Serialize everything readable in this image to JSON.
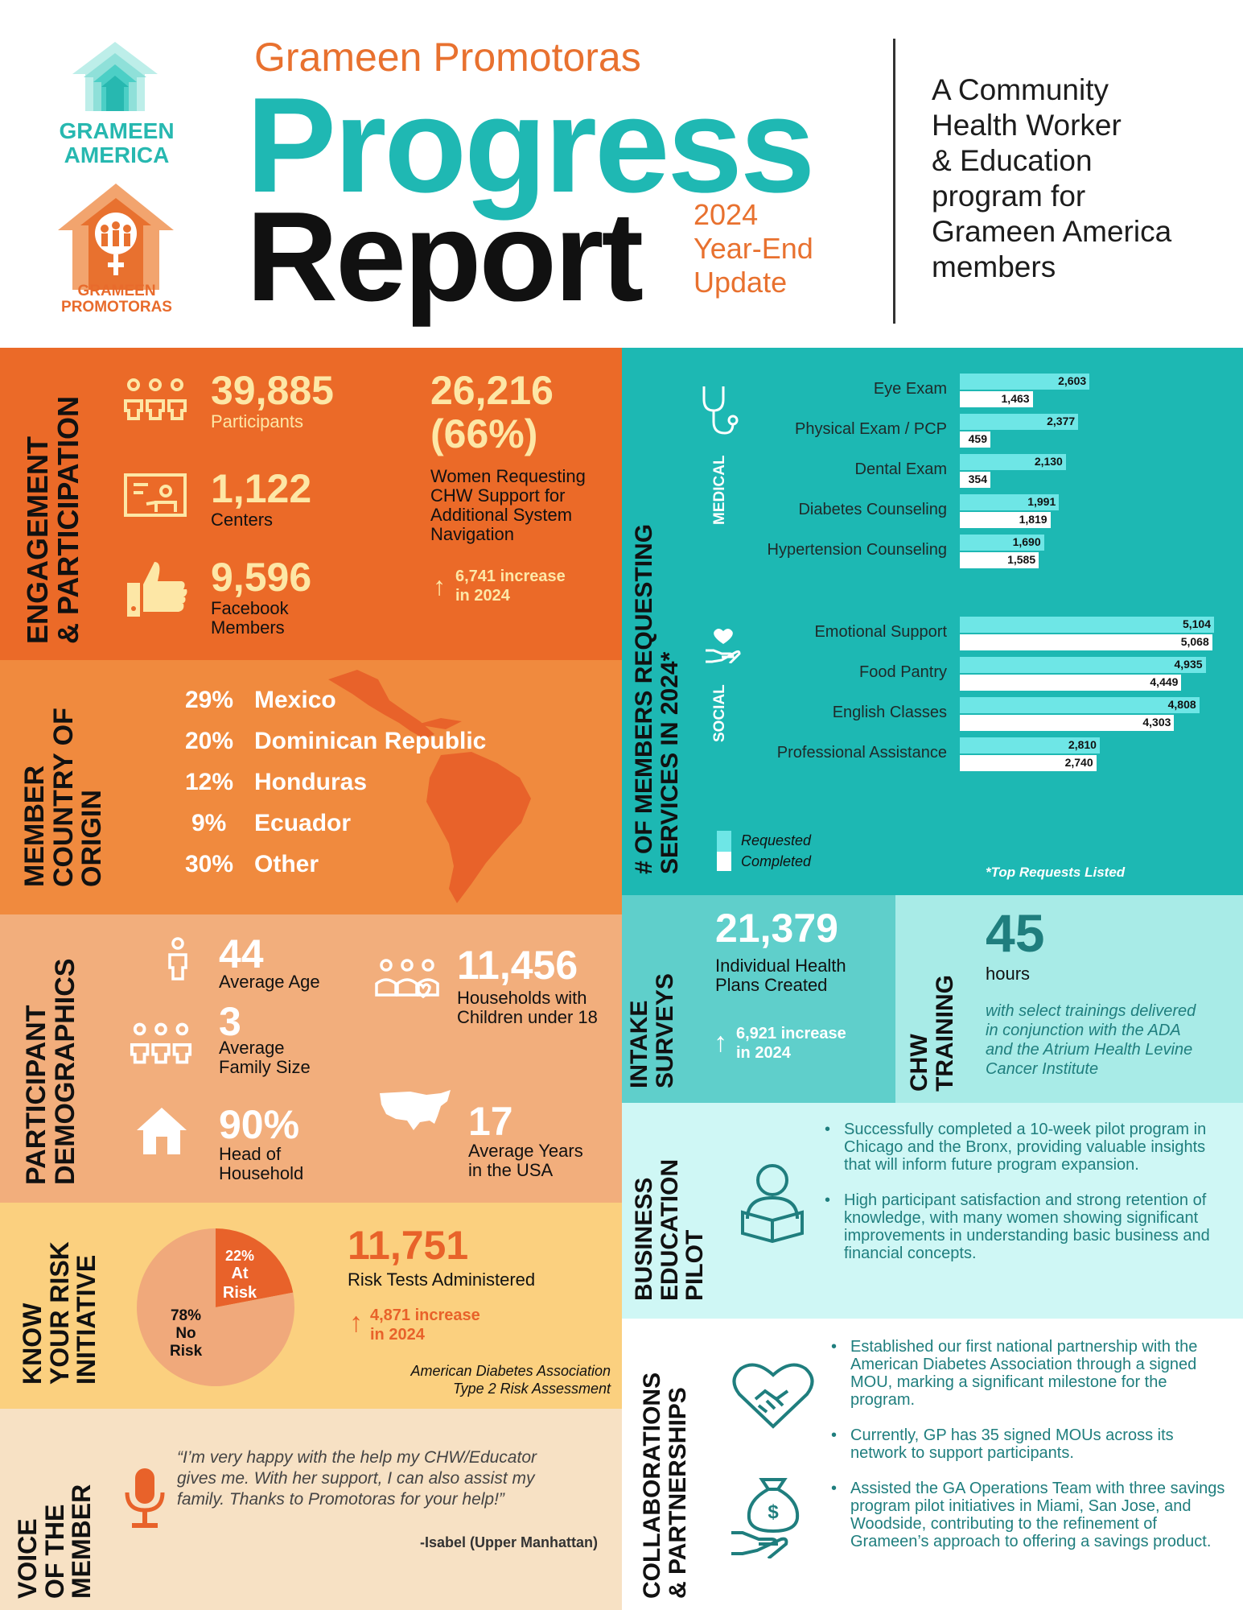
{
  "header": {
    "logo1_line1": "GRAMEEN",
    "logo1_line2": "AMERICA",
    "logo2_line1": "GRAMEEN",
    "logo2_line2": "PROMOTORAS",
    "org_title": "Grameen Promotoras",
    "title_line1": "Progress",
    "title_line2": "Report",
    "update_line1": "2024",
    "update_line2": "Year-End",
    "update_line3": "Update",
    "tagline": [
      "A Community",
      "Health Worker",
      "& Education",
      "program for",
      "Grameen America",
      "members"
    ]
  },
  "engagement": {
    "section_title": [
      "ENGAGEMENT",
      "& PARTICIPATION"
    ],
    "participants_value": "39,885",
    "participants_label": "Participants",
    "centers_value": "1,122",
    "centers_label": "Centers",
    "facebook_value": "9,596",
    "facebook_label": [
      "Facebook",
      "Members"
    ],
    "women_value": "26,216",
    "women_pct": "(66%)",
    "women_label": [
      "Women Requesting",
      "CHW Support for",
      "Additional System",
      "Navigation"
    ],
    "women_increase": [
      "6,741 increase",
      "in 2024"
    ]
  },
  "origin": {
    "section_title": [
      "MEMBER",
      "COUNTRY OF",
      "ORIGIN"
    ],
    "items": [
      {
        "pct": "29%",
        "country": "Mexico"
      },
      {
        "pct": "20%",
        "country": "Dominican Republic"
      },
      {
        "pct": "12%",
        "country": "Honduras"
      },
      {
        "pct": "9%",
        "country": "Ecuador"
      },
      {
        "pct": "30%",
        "country": "Other"
      }
    ]
  },
  "demographics": {
    "section_title": [
      "PARTICIPANT",
      "DEMOGRAPHICS"
    ],
    "age_value": "44",
    "age_label": "Average Age",
    "family_value": "3",
    "family_label": [
      "Average",
      "Family Size"
    ],
    "head_value": "90%",
    "head_label": [
      "Head of",
      "Household"
    ],
    "households_value": "11,456",
    "households_label": [
      "Households with",
      "Children under 18"
    ],
    "years_value": "17",
    "years_label": [
      "Average Years",
      "in the USA"
    ]
  },
  "risk": {
    "section_title": [
      "KNOW",
      "YOUR RISK",
      "INITIATIVE"
    ],
    "chart_data": {
      "type": "pie",
      "slices": [
        {
          "label": "At Risk",
          "value": 22,
          "display": "22%",
          "color": "#e8622a"
        },
        {
          "label": "No Risk",
          "value": 78,
          "display": "78%",
          "color": "#f0a97b"
        }
      ]
    },
    "tests_value": "11,751",
    "tests_label": "Risk Tests Administered",
    "tests_increase": [
      "4,871 increase",
      "in 2024"
    ],
    "source": [
      "American Diabetes Association",
      "Type 2 Risk Assessment"
    ]
  },
  "voice": {
    "section_title": [
      "VOICE",
      "OF THE",
      "MEMBER"
    ],
    "quote": [
      "“I’m very happy with the help my CHW/Educator",
      "gives me. With her support, I can also assist my",
      "family. Thanks to  Promotoras for your help!”"
    ],
    "author": "-Isabel (Upper Manhattan)"
  },
  "services": {
    "section_title": [
      "# OF MEMBERS  REQUESTING",
      "SERVICES IN 2024*"
    ],
    "medical_label": "MEDICAL",
    "social_label": "SOCIAL",
    "legend_requested": "Requested",
    "legend_completed": "Completed",
    "footnote": "*Top Requests Listed",
    "chart_data": {
      "type": "bar",
      "orientation": "horizontal",
      "series": [
        {
          "name": "Requested",
          "color": "#6ee6e6"
        },
        {
          "name": "Completed",
          "color": "#ffffff"
        }
      ],
      "medical": [
        {
          "label": "Eye Exam",
          "requested": 2603,
          "completed": 1463,
          "req_text": "2,603",
          "comp_text": "1,463"
        },
        {
          "label": "Physical Exam / PCP",
          "requested": 2377,
          "completed": 459,
          "req_text": "2,377",
          "comp_text": "459"
        },
        {
          "label": "Dental Exam",
          "requested": 2130,
          "completed": 354,
          "req_text": "2,130",
          "comp_text": "354"
        },
        {
          "label": "Diabetes Counseling",
          "requested": 1991,
          "completed": 1819,
          "req_text": "1,991",
          "comp_text": "1,819"
        },
        {
          "label": "Hypertension Counseling",
          "requested": 1690,
          "completed": 1585,
          "req_text": "1,690",
          "comp_text": "1,585"
        }
      ],
      "social": [
        {
          "label": "Emotional Support",
          "requested": 5104,
          "completed": 5068,
          "req_text": "5,104",
          "comp_text": "5,068"
        },
        {
          "label": "Food Pantry",
          "requested": 4935,
          "completed": 4449,
          "req_text": "4,935",
          "comp_text": "4,449"
        },
        {
          "label": "English Classes",
          "requested": 4808,
          "completed": 4303,
          "req_text": "4,808",
          "comp_text": "4,303"
        },
        {
          "label": "Professional Assistance",
          "requested": 2810,
          "completed": 2740,
          "req_text": "2,810",
          "comp_text": "2,740"
        }
      ],
      "xlim": [
        0,
        5104
      ]
    }
  },
  "intake": {
    "section_title": [
      "INTAKE",
      "SURVEYS"
    ],
    "value": "21,379",
    "label": [
      "Individual Health",
      "Plans Created"
    ],
    "increase": [
      "6,921 increase",
      "in 2024"
    ]
  },
  "training": {
    "section_title": [
      "CHW",
      "TRAINING"
    ],
    "value": "45",
    "unit": "hours",
    "note": [
      "with select trainings delivered",
      "in conjunction with the ADA",
      "and the Atrium Health Levine",
      "Cancer Institute"
    ]
  },
  "business": {
    "section_title": [
      "BUSINESS",
      "EDUCATION",
      "PILOT"
    ],
    "bullets": [
      "Successfully completed a 10-week pilot program in Chicago and the Bronx, providing valuable insights that will inform future program expansion.",
      "High participant satisfaction and strong retention of knowledge, with many women showing significant improvements in understanding basic business and financial concepts."
    ]
  },
  "collab": {
    "section_title": [
      "COLLABORATIONS",
      "& PARTNERSHIPS"
    ],
    "bullets": [
      "Established our first national partnership with the American Diabetes Association through a signed MOU, marking a significant milestone for the program.",
      "Currently, GP has 35 signed MOUs across its network to support participants.",
      "Assisted the GA Operations Team with three savings program pilot initiatives in Miami, San Jose, and Woodside, contributing to the refinement of Grameen’s approach to offering a savings product."
    ]
  },
  "colors": {
    "orange_dark": "#eb6a28",
    "orange_mid": "#f08a3e",
    "orange_light": "#f2ae7c",
    "yellow": "#fbd07f",
    "cream": "#f7e1c4",
    "teal_dark": "#1db8b3",
    "teal_mid": "#5fcfcb",
    "teal_light": "#a8ebe7",
    "teal_pale": "#cff7f5"
  }
}
